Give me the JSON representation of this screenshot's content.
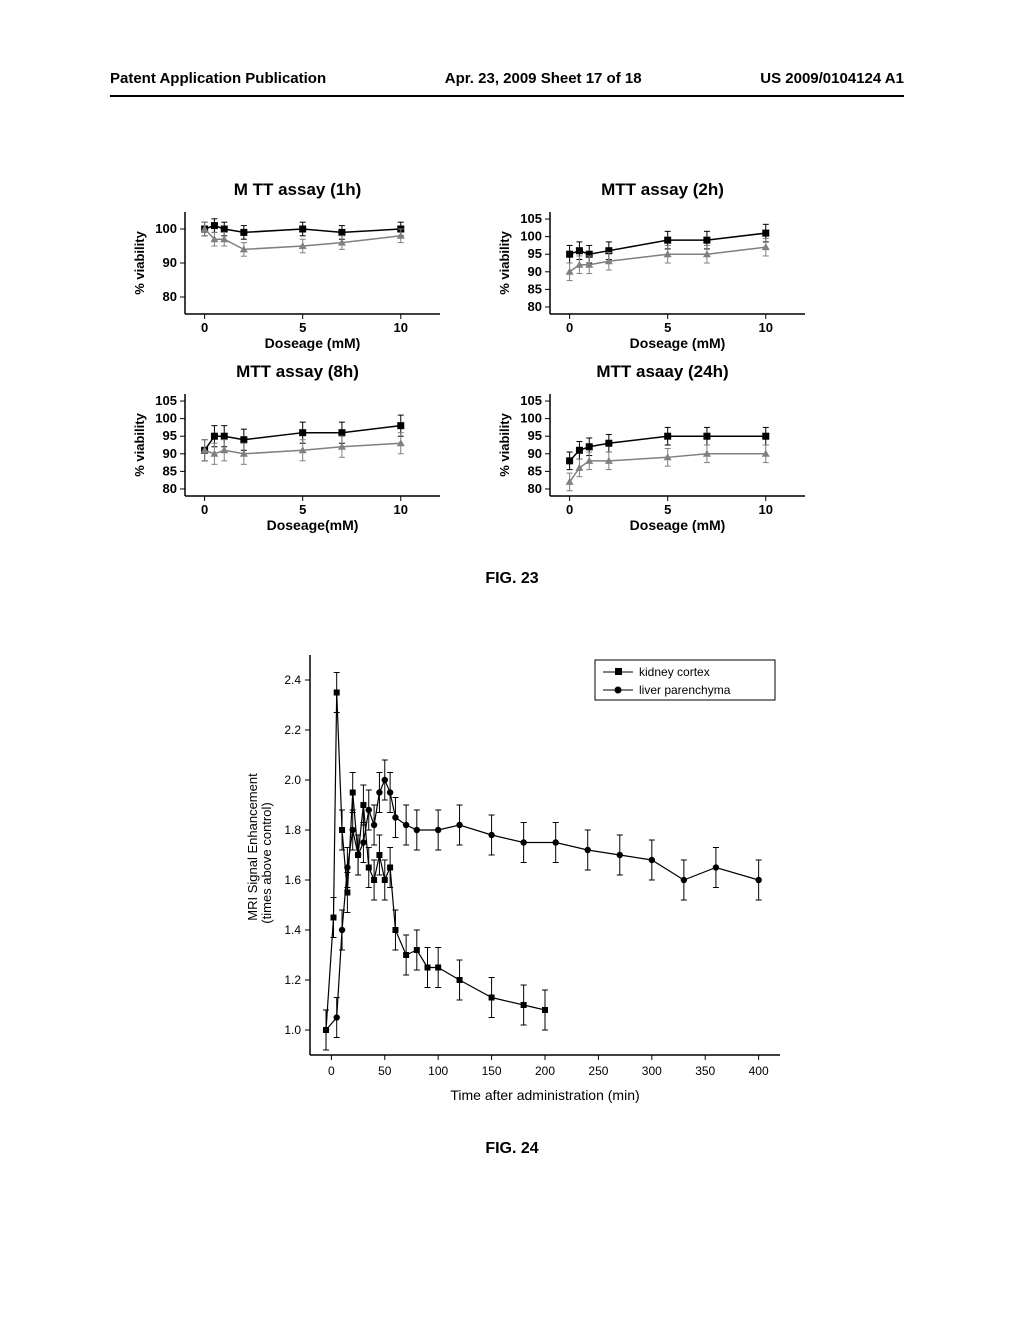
{
  "header": {
    "left": "Patent Application Publication",
    "mid": "Apr. 23, 2009  Sheet 17 of 18",
    "right": "US 2009/0104124 A1"
  },
  "fig23": {
    "label": "FIG. 23",
    "panels": [
      {
        "title": "M TT assay (1h)",
        "ylabel": "% viability",
        "xlabel": "Doseage (mM)",
        "ylim": [
          75,
          105
        ],
        "yticks": [
          80,
          90,
          100
        ],
        "xlim": [
          -1,
          12
        ],
        "xticks": [
          0,
          5,
          10
        ],
        "s1": [
          [
            0,
            100
          ],
          [
            0.5,
            101
          ],
          [
            1,
            100
          ],
          [
            2,
            99
          ],
          [
            5,
            100
          ],
          [
            7,
            99
          ],
          [
            10,
            100
          ]
        ],
        "s2": [
          [
            0,
            100
          ],
          [
            0.5,
            97
          ],
          [
            1,
            97
          ],
          [
            2,
            94
          ],
          [
            5,
            95
          ],
          [
            7,
            96
          ],
          [
            10,
            98
          ]
        ],
        "err": 2
      },
      {
        "title": "MTT assay (2h)",
        "ylabel": "% viability",
        "xlabel": "Doseage (mM)",
        "ylim": [
          78,
          107
        ],
        "yticks": [
          80,
          85,
          90,
          95,
          100,
          105
        ],
        "xlim": [
          -1,
          12
        ],
        "xticks": [
          0,
          5,
          10
        ],
        "s1": [
          [
            0,
            95
          ],
          [
            0.5,
            96
          ],
          [
            1,
            95
          ],
          [
            2,
            96
          ],
          [
            5,
            99
          ],
          [
            7,
            99
          ],
          [
            10,
            101
          ]
        ],
        "s2": [
          [
            0,
            90
          ],
          [
            0.5,
            92
          ],
          [
            1,
            92
          ],
          [
            2,
            93
          ],
          [
            5,
            95
          ],
          [
            7,
            95
          ],
          [
            10,
            97
          ]
        ],
        "err": 2.5
      },
      {
        "title": "MTT assay (8h)",
        "ylabel": "% viability",
        "xlabel": "Doseage(mM)",
        "ylim": [
          78,
          107
        ],
        "yticks": [
          80,
          85,
          90,
          95,
          100,
          105
        ],
        "xlim": [
          -1,
          12
        ],
        "xticks": [
          0,
          5,
          10
        ],
        "s1": [
          [
            0,
            91
          ],
          [
            0.5,
            95
          ],
          [
            1,
            95
          ],
          [
            2,
            94
          ],
          [
            5,
            96
          ],
          [
            7,
            96
          ],
          [
            10,
            98
          ]
        ],
        "s2": [
          [
            0,
            91
          ],
          [
            0.5,
            90
          ],
          [
            1,
            91
          ],
          [
            2,
            90
          ],
          [
            5,
            91
          ],
          [
            7,
            92
          ],
          [
            10,
            93
          ]
        ],
        "err": 3
      },
      {
        "title": "MTT asaay (24h)",
        "ylabel": "% viability",
        "xlabel": "Doseage (mM)",
        "ylim": [
          78,
          107
        ],
        "yticks": [
          80,
          85,
          90,
          95,
          100,
          105
        ],
        "xlim": [
          -1,
          12
        ],
        "xticks": [
          0,
          5,
          10
        ],
        "s1": [
          [
            0,
            88
          ],
          [
            0.5,
            91
          ],
          [
            1,
            92
          ],
          [
            2,
            93
          ],
          [
            5,
            95
          ],
          [
            7,
            95
          ],
          [
            10,
            95
          ]
        ],
        "s2": [
          [
            0,
            82
          ],
          [
            0.5,
            86
          ],
          [
            1,
            88
          ],
          [
            2,
            88
          ],
          [
            5,
            89
          ],
          [
            7,
            90
          ],
          [
            10,
            90
          ]
        ],
        "err": 2.5
      }
    ],
    "colors": {
      "s1": "#000000",
      "s2": "#808080",
      "axis": "#000000",
      "bg": "#ffffff"
    },
    "fontsize": {
      "title": 17,
      "label": 14,
      "tick": 13
    },
    "marker": {
      "s1": "square",
      "s2": "triangle",
      "size": 4
    }
  },
  "fig24": {
    "label": "FIG. 24",
    "ylabel1": "MRI Signal Enhancement",
    "ylabel2": "(times above control)",
    "xlabel": "Time after administration (min)",
    "ylim": [
      0.9,
      2.5
    ],
    "yticks": [
      1.0,
      1.2,
      1.4,
      1.6,
      1.8,
      2.0,
      2.2,
      2.4
    ],
    "xlim": [
      -20,
      420
    ],
    "xticks": [
      0,
      50,
      100,
      150,
      200,
      250,
      300,
      350,
      400
    ],
    "legend": [
      {
        "marker": "square",
        "label": "kidney cortex"
      },
      {
        "marker": "circle",
        "label": "liver parenchyma"
      }
    ],
    "kidney": [
      [
        -5,
        1.0
      ],
      [
        2,
        1.45
      ],
      [
        5,
        2.35
      ],
      [
        10,
        1.8
      ],
      [
        15,
        1.55
      ],
      [
        20,
        1.95
      ],
      [
        25,
        1.7
      ],
      [
        30,
        1.9
      ],
      [
        35,
        1.65
      ],
      [
        40,
        1.6
      ],
      [
        45,
        1.7
      ],
      [
        50,
        1.6
      ],
      [
        55,
        1.65
      ],
      [
        60,
        1.4
      ],
      [
        70,
        1.3
      ],
      [
        80,
        1.32
      ],
      [
        90,
        1.25
      ],
      [
        100,
        1.25
      ],
      [
        120,
        1.2
      ],
      [
        150,
        1.13
      ],
      [
        180,
        1.1
      ],
      [
        200,
        1.08
      ]
    ],
    "liver": [
      [
        -5,
        1.0
      ],
      [
        5,
        1.05
      ],
      [
        10,
        1.4
      ],
      [
        15,
        1.65
      ],
      [
        20,
        1.8
      ],
      [
        25,
        1.7
      ],
      [
        30,
        1.75
      ],
      [
        35,
        1.88
      ],
      [
        40,
        1.82
      ],
      [
        45,
        1.95
      ],
      [
        50,
        2.0
      ],
      [
        55,
        1.95
      ],
      [
        60,
        1.85
      ],
      [
        70,
        1.82
      ],
      [
        80,
        1.8
      ],
      [
        100,
        1.8
      ],
      [
        120,
        1.82
      ],
      [
        150,
        1.78
      ],
      [
        180,
        1.75
      ],
      [
        210,
        1.75
      ],
      [
        240,
        1.72
      ],
      [
        270,
        1.7
      ],
      [
        300,
        1.68
      ],
      [
        330,
        1.6
      ],
      [
        360,
        1.65
      ],
      [
        400,
        1.6
      ]
    ],
    "err": 0.08,
    "colors": {
      "axis": "#000000",
      "kidney": "#000000",
      "liver": "#000000"
    },
    "fontsize": {
      "label": 14,
      "tick": 12,
      "legend": 12
    }
  }
}
